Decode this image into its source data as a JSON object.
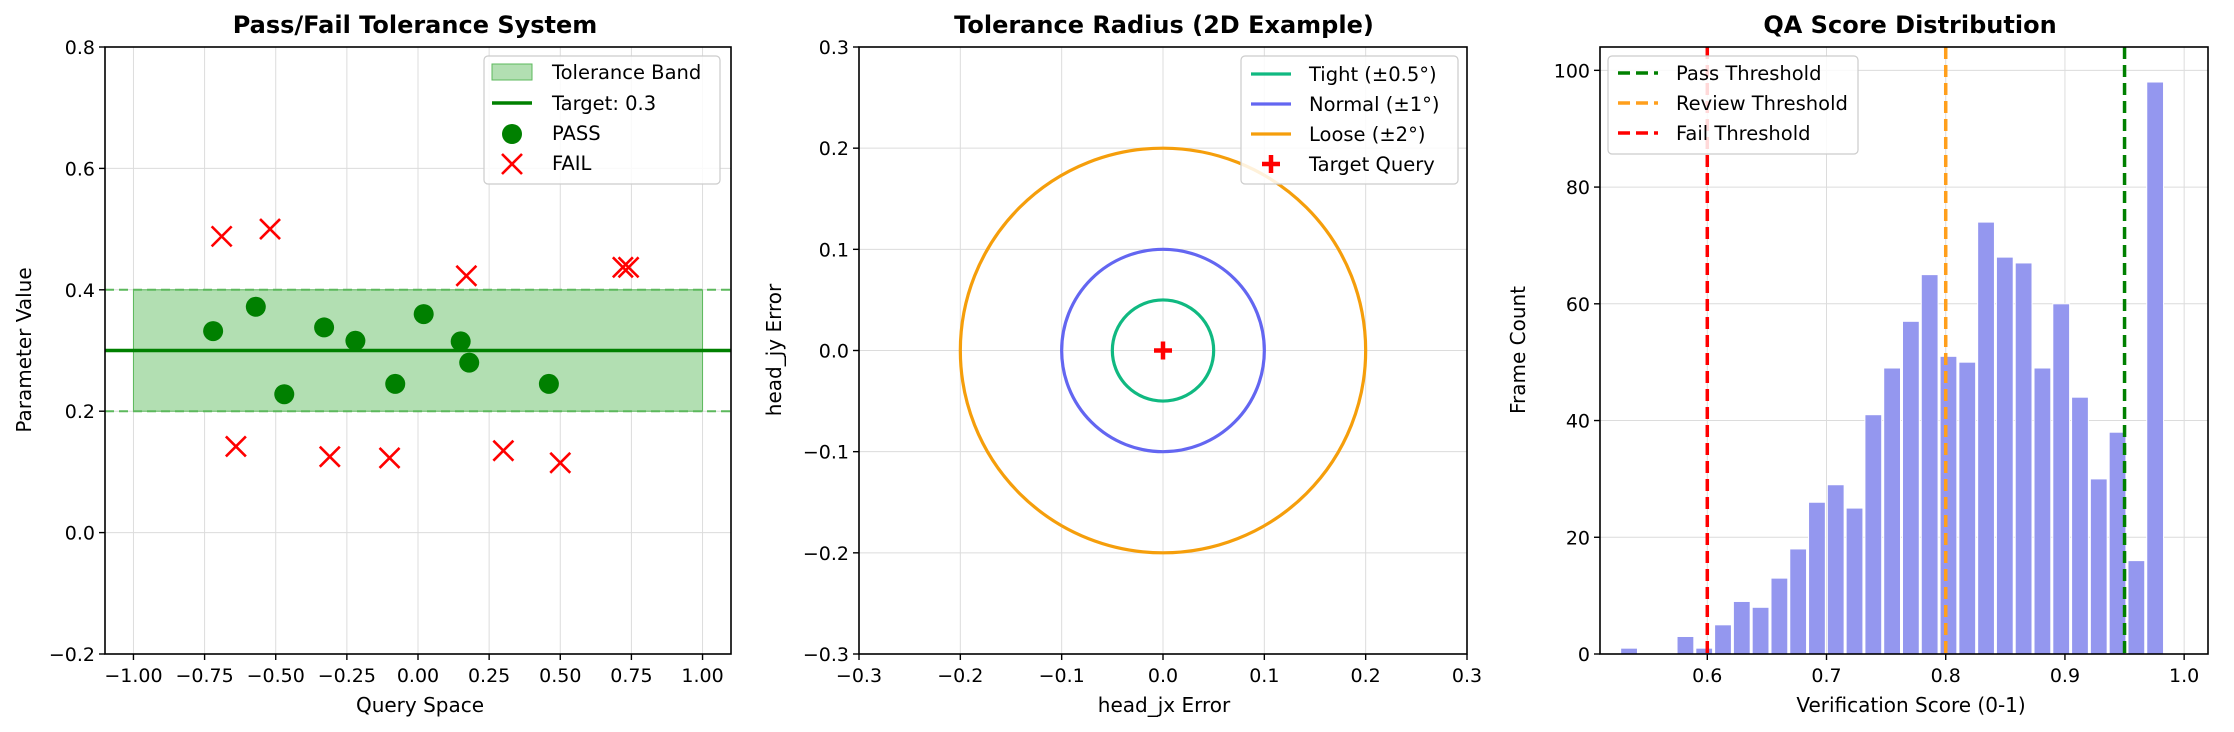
{
  "chart_data": [
    {
      "type": "scatter",
      "title": "Pass/Fail Tolerance System",
      "xlabel": "Query Space",
      "ylabel": "Parameter Value",
      "xlim": [
        -1.1,
        1.1
      ],
      "ylim": [
        -0.2,
        0.8
      ],
      "xticks": [
        -1.0,
        -0.75,
        -0.5,
        -0.25,
        0.0,
        0.25,
        0.5,
        0.75,
        1.0
      ],
      "xtick_labels": [
        "−1.00",
        "−0.75",
        "−0.50",
        "−0.25",
        "0.00",
        "0.25",
        "0.50",
        "0.75",
        "1.00"
      ],
      "yticks": [
        -0.2,
        0.0,
        0.2,
        0.4,
        0.6,
        0.8
      ],
      "ytick_labels": [
        "−0.2",
        "0.0",
        "0.2",
        "0.4",
        "0.6",
        "0.8"
      ],
      "grid": true,
      "target": 0.3,
      "tolerance_band": [
        0.2,
        0.4
      ],
      "band_x": [
        -1.0,
        1.0
      ],
      "pass_points": [
        {
          "x": -0.72,
          "y": 0.332
        },
        {
          "x": -0.57,
          "y": 0.372
        },
        {
          "x": -0.47,
          "y": 0.228
        },
        {
          "x": -0.33,
          "y": 0.338
        },
        {
          "x": -0.22,
          "y": 0.316
        },
        {
          "x": -0.08,
          "y": 0.245
        },
        {
          "x": 0.02,
          "y": 0.36
        },
        {
          "x": 0.15,
          "y": 0.315
        },
        {
          "x": 0.18,
          "y": 0.28
        },
        {
          "x": 0.46,
          "y": 0.245
        }
      ],
      "fail_points": [
        {
          "x": -0.69,
          "y": 0.488
        },
        {
          "x": -0.52,
          "y": 0.5
        },
        {
          "x": -0.64,
          "y": 0.142
        },
        {
          "x": -0.31,
          "y": 0.125
        },
        {
          "x": -0.1,
          "y": 0.123
        },
        {
          "x": 0.17,
          "y": 0.423
        },
        {
          "x": 0.3,
          "y": 0.135
        },
        {
          "x": 0.5,
          "y": 0.115
        },
        {
          "x": 0.72,
          "y": 0.437
        },
        {
          "x": 0.74,
          "y": 0.437
        }
      ],
      "legend": [
        "Tolerance Band",
        "Target: 0.3",
        "PASS",
        "FAIL"
      ],
      "legend_position": "upper-right",
      "colors": {
        "band": "#b2dfb2",
        "band_edge": "#5cb85c",
        "target": "#008000",
        "pass": "#008000",
        "fail": "#ff0000"
      }
    },
    {
      "type": "line",
      "title": "Tolerance Radius (2D Example)",
      "xlabel": "head_jx Error",
      "ylabel": "head_jy Error",
      "xlim": [
        -0.3,
        0.3
      ],
      "ylim": [
        -0.3,
        0.3
      ],
      "xticks": [
        -0.3,
        -0.2,
        -0.1,
        0.0,
        0.1,
        0.2,
        0.3
      ],
      "xtick_labels": [
        "−0.3",
        "−0.2",
        "−0.1",
        "0.0",
        "0.1",
        "0.2",
        "0.3"
      ],
      "yticks": [
        -0.3,
        -0.2,
        -0.1,
        0.0,
        0.1,
        0.2,
        0.3
      ],
      "ytick_labels": [
        "−0.3",
        "−0.2",
        "−0.1",
        "0.0",
        "0.1",
        "0.2",
        "0.3"
      ],
      "grid": true,
      "circles": [
        {
          "name": "Tight (±0.5°)",
          "radius": 0.05,
          "color": "#10b981"
        },
        {
          "name": "Normal (±1°)",
          "radius": 0.1,
          "color": "#6366f1"
        },
        {
          "name": "Loose (±2°)",
          "radius": 0.2,
          "color": "#f59e0b"
        }
      ],
      "target": {
        "name": "Target Query",
        "x": 0.0,
        "y": 0.0,
        "color": "#ff0000"
      },
      "legend_position": "upper-right"
    },
    {
      "type": "bar",
      "title": "QA Score Distribution",
      "xlabel": "Verification Score (0-1)",
      "ylabel": "Frame Count",
      "xlim": [
        0.51,
        1.02
      ],
      "ylim": [
        0,
        104
      ],
      "xticks": [
        0.6,
        0.7,
        0.8,
        0.9,
        1.0
      ],
      "xtick_labels": [
        "0.6",
        "0.7",
        "0.8",
        "0.9",
        "1.0"
      ],
      "yticks": [
        0,
        20,
        40,
        60,
        80,
        100
      ],
      "ytick_labels": [
        "0",
        "20",
        "40",
        "60",
        "80",
        "100"
      ],
      "grid": true,
      "bin_start": 0.5265,
      "bin_width": 0.01576,
      "values": [
        1,
        0,
        0,
        3,
        1,
        5,
        9,
        8,
        13,
        18,
        26,
        29,
        25,
        41,
        49,
        57,
        65,
        51,
        50,
        74,
        68,
        67,
        49,
        60,
        44,
        30,
        38,
        16,
        98
      ],
      "thresholds": [
        {
          "name": "Pass Threshold",
          "x": 0.95,
          "color": "#008000"
        },
        {
          "name": "Review Threshold",
          "x": 0.8,
          "color": "#ff9f1c"
        },
        {
          "name": "Fail Threshold",
          "x": 0.6,
          "color": "#ff0000"
        }
      ],
      "bar_color": "#9497ef",
      "legend_position": "upper-left"
    }
  ]
}
